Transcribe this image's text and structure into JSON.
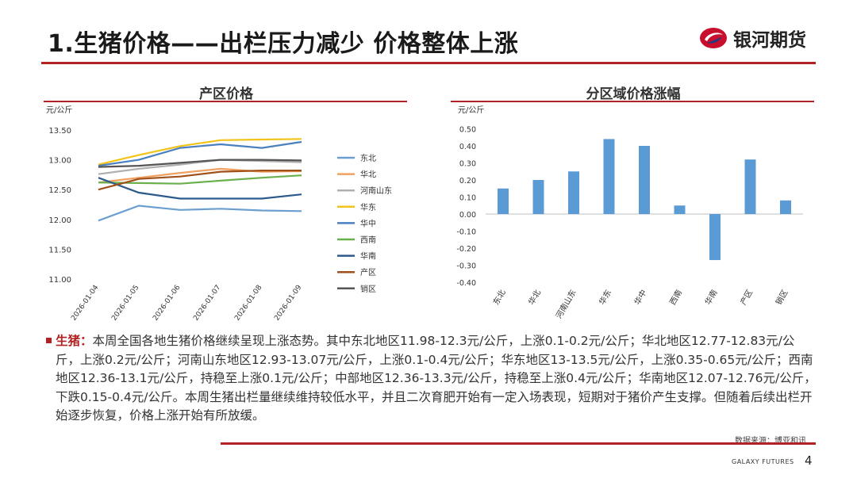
{
  "header": {
    "title": "1.生猪价格——出栏压力减少 价格整体上涨",
    "logo_text": "银河期货"
  },
  "charts": {
    "left_title": "产区价格",
    "right_title": "分区域价格涨幅"
  },
  "chart_data": [
    {
      "type": "line",
      "title": "产区价格",
      "ylabel": "元/公斤",
      "ylim": [
        11.0,
        13.5
      ],
      "yticks": [
        "11.00",
        "11.50",
        "12.00",
        "12.50",
        "13.00",
        "13.50"
      ],
      "x": [
        "2026-01-04",
        "2026-01-05",
        "2026-01-06",
        "2026-01-07",
        "2026-01-08",
        "2026-01-09"
      ],
      "series": [
        {
          "name": "东北",
          "color": "#6a9fcf",
          "values": [
            11.98,
            12.23,
            12.16,
            12.18,
            12.15,
            12.14
          ]
        },
        {
          "name": "华北",
          "color": "#f0a060",
          "values": [
            12.62,
            12.7,
            12.78,
            12.85,
            12.8,
            12.81
          ]
        },
        {
          "name": "河南山东",
          "color": "#b0b0b0",
          "values": [
            12.76,
            12.85,
            12.92,
            13.0,
            12.98,
            12.96
          ]
        },
        {
          "name": "华东",
          "color": "#f2c318",
          "values": [
            12.92,
            13.08,
            13.23,
            13.33,
            13.34,
            13.35
          ]
        },
        {
          "name": "华中",
          "color": "#4a7fc0",
          "values": [
            12.9,
            13.0,
            13.2,
            13.26,
            13.2,
            13.3
          ]
        },
        {
          "name": "西南",
          "color": "#6ab04c",
          "values": [
            12.62,
            12.61,
            12.6,
            12.65,
            12.7,
            12.74
          ]
        },
        {
          "name": "华南",
          "color": "#2d5a8c",
          "values": [
            12.7,
            12.45,
            12.35,
            12.35,
            12.35,
            12.42
          ]
        },
        {
          "name": "产区",
          "color": "#a0501a",
          "values": [
            12.5,
            12.68,
            12.72,
            12.8,
            12.82,
            12.82
          ]
        },
        {
          "name": "销区",
          "color": "#555555",
          "values": [
            12.88,
            12.9,
            12.95,
            13.0,
            13.0,
            12.99
          ]
        }
      ]
    },
    {
      "type": "bar",
      "title": "分区域价格涨幅",
      "ylabel": "元/公斤",
      "ylim": [
        -0.4,
        0.5
      ],
      "yticks": [
        "0.50",
        "0.40",
        "0.30",
        "0.20",
        "0.10",
        "0.00",
        "-0.10",
        "-0.20",
        "-0.30",
        "-0.40"
      ],
      "categories": [
        "东北",
        "华北",
        "河南山东",
        "华东",
        "华中",
        "西南",
        "华南",
        "产区",
        "销区"
      ],
      "values": [
        0.15,
        0.2,
        0.25,
        0.44,
        0.4,
        0.05,
        -0.27,
        0.32,
        0.08
      ],
      "color": "#5b9bd5"
    }
  ],
  "body": {
    "label": "生猪：",
    "text": "本周全国各地生猪价格继续呈现上涨态势。其中东北地区11.98-12.3元/公斤，上涨0.1-0.2元/公斤；华北地区12.77-12.83元/公斤，上涨0.2元/公斤；河南山东地区12.93-13.07元/公斤，上涨0.1-0.4元/公斤；华东地区13-13.5元/公斤，上涨0.35-0.65元/公斤；西南地区12.36-13.1元/公斤，持稳至上涨0.1元/公斤；中部地区12.36-13.3元/公斤，持稳至上涨0.4元/公斤；华南地区12.07-12.76元/公斤，下跌0.15-0.4元/公斤。本周生猪出栏量继续维持较低水平，并且二次育肥开始有一定入场表现，短期对于猪价产生支撑。但随着后续出栏开始逐步恢复，价格上涨开始有所放缓。"
  },
  "footer": {
    "source": "数据来源：博亚和讯",
    "brand": "GALAXY FUTURES",
    "page": "4"
  }
}
